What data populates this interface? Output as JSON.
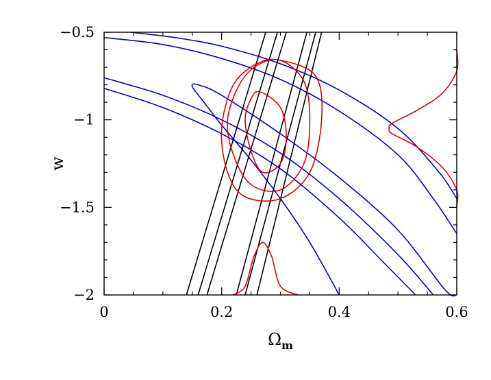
{
  "chart_data": {
    "type": "contour",
    "xlabel": "Ω",
    "xlabel_subscript": "m",
    "ylabel": "w",
    "xlim": [
      0,
      0.6
    ],
    "ylim": [
      -2,
      -0.5
    ],
    "x_ticks": [
      0,
      0.2,
      0.4,
      0.6
    ],
    "x_tick_labels": [
      "0",
      "0.2",
      "0.4",
      "0.6"
    ],
    "y_ticks": [
      -2,
      -1.5,
      -1,
      -0.5
    ],
    "y_tick_labels": [
      "−2",
      "−1.5",
      "−1",
      "−0.5"
    ],
    "grid": false,
    "legend": "none",
    "colors": {
      "black_constraint": "#000000",
      "blue_constraint": "#0000cc",
      "red_constraint": "#e00000"
    },
    "series": [
      {
        "color": "#0000cc",
        "points": [
          [
            0.0,
            -0.53
          ],
          [
            0.1,
            -0.57
          ],
          [
            0.2,
            -0.65
          ],
          [
            0.3,
            -0.77
          ],
          [
            0.4,
            -0.95
          ],
          [
            0.5,
            -1.2
          ],
          [
            0.56,
            -1.45
          ],
          [
            0.6,
            -1.65
          ]
        ]
      },
      {
        "color": "#0000cc",
        "points": [
          [
            0.045,
            -0.5
          ],
          [
            0.12,
            -0.53
          ],
          [
            0.2,
            -0.58
          ],
          [
            0.3,
            -0.68
          ],
          [
            0.4,
            -0.83
          ],
          [
            0.5,
            -1.05
          ],
          [
            0.57,
            -1.3
          ],
          [
            0.6,
            -1.45
          ]
        ]
      },
      {
        "color": "#0000cc",
        "points": [
          [
            0.0,
            -0.82
          ],
          [
            0.1,
            -0.93
          ],
          [
            0.2,
            -1.08
          ],
          [
            0.3,
            -1.28
          ],
          [
            0.4,
            -1.56
          ],
          [
            0.48,
            -1.83
          ],
          [
            0.53,
            -2.0
          ]
        ]
      },
      {
        "color": "#0000cc",
        "points": [
          [
            0.0,
            -0.76
          ],
          [
            0.1,
            -0.86
          ],
          [
            0.2,
            -1.0
          ],
          [
            0.3,
            -1.19
          ],
          [
            0.4,
            -1.45
          ],
          [
            0.5,
            -1.77
          ],
          [
            0.56,
            -2.0
          ]
        ]
      },
      {
        "color": "#0000cc",
        "points": [
          [
            0.4,
            -2.0
          ],
          [
            0.35,
            -1.7
          ],
          [
            0.3,
            -1.45
          ],
          [
            0.25,
            -1.23
          ],
          [
            0.2,
            -1.03
          ],
          [
            0.17,
            -0.9
          ],
          [
            0.15,
            -0.81
          ],
          [
            0.16,
            -0.8
          ],
          [
            0.2,
            -0.86
          ],
          [
            0.3,
            -1.08
          ],
          [
            0.4,
            -1.33
          ],
          [
            0.5,
            -1.63
          ],
          [
            0.58,
            -1.97
          ],
          [
            0.6,
            -2.0
          ]
        ]
      },
      {
        "color": "#000000",
        "points": [
          [
            0.14,
            -2.0
          ],
          [
            0.275,
            -0.5
          ]
        ]
      },
      {
        "color": "#000000",
        "points": [
          [
            0.16,
            -2.0
          ],
          [
            0.295,
            -0.5
          ]
        ]
      },
      {
        "color": "#000000",
        "points": [
          [
            0.175,
            -2.0
          ],
          [
            0.31,
            -0.5
          ]
        ]
      },
      {
        "color": "#000000",
        "points": [
          [
            0.225,
            -2.0
          ],
          [
            0.345,
            -0.5
          ]
        ]
      },
      {
        "color": "#000000",
        "points": [
          [
            0.24,
            -2.0
          ],
          [
            0.36,
            -0.5
          ]
        ]
      },
      {
        "color": "#000000",
        "points": [
          [
            0.26,
            -2.0
          ],
          [
            0.37,
            -0.5
          ]
        ]
      },
      {
        "color": "#e00000",
        "closed": true,
        "points": [
          [
            0.265,
            -0.84
          ],
          [
            0.3,
            -0.93
          ],
          [
            0.31,
            -1.1
          ],
          [
            0.3,
            -1.25
          ],
          [
            0.27,
            -1.3
          ],
          [
            0.25,
            -1.18
          ],
          [
            0.24,
            -1.0
          ],
          [
            0.25,
            -0.88
          ]
        ]
      },
      {
        "color": "#e00000",
        "closed": true,
        "points": [
          [
            0.3,
            -0.66
          ],
          [
            0.34,
            -0.78
          ],
          [
            0.35,
            -1.0
          ],
          [
            0.34,
            -1.25
          ],
          [
            0.3,
            -1.4
          ],
          [
            0.25,
            -1.37
          ],
          [
            0.22,
            -1.2
          ],
          [
            0.21,
            -1.0
          ],
          [
            0.23,
            -0.8
          ],
          [
            0.26,
            -0.69
          ]
        ]
      },
      {
        "color": "#e00000",
        "closed": true,
        "points": [
          [
            0.3,
            -0.66
          ],
          [
            0.36,
            -0.75
          ],
          [
            0.37,
            -1.0
          ],
          [
            0.35,
            -1.3
          ],
          [
            0.3,
            -1.45
          ],
          [
            0.24,
            -1.44
          ],
          [
            0.21,
            -1.3
          ],
          [
            0.2,
            -1.05
          ],
          [
            0.22,
            -0.8
          ],
          [
            0.26,
            -0.68
          ]
        ]
      },
      {
        "color": "#e00000",
        "points": [
          [
            0.22,
            -2.0
          ],
          [
            0.24,
            -1.95
          ],
          [
            0.255,
            -1.78
          ],
          [
            0.27,
            -1.7
          ],
          [
            0.285,
            -1.78
          ],
          [
            0.3,
            -1.95
          ],
          [
            0.33,
            -2.0
          ]
        ]
      },
      {
        "color": "#e00000",
        "points": [
          [
            0.6,
            -0.6
          ],
          [
            0.6,
            -0.72
          ],
          [
            0.575,
            -0.85
          ],
          [
            0.53,
            -0.95
          ],
          [
            0.49,
            -1.02
          ],
          [
            0.485,
            -1.05
          ],
          [
            0.49,
            -1.08
          ],
          [
            0.53,
            -1.15
          ],
          [
            0.575,
            -1.27
          ],
          [
            0.6,
            -1.4
          ],
          [
            0.6,
            -1.5
          ]
        ]
      }
    ]
  }
}
